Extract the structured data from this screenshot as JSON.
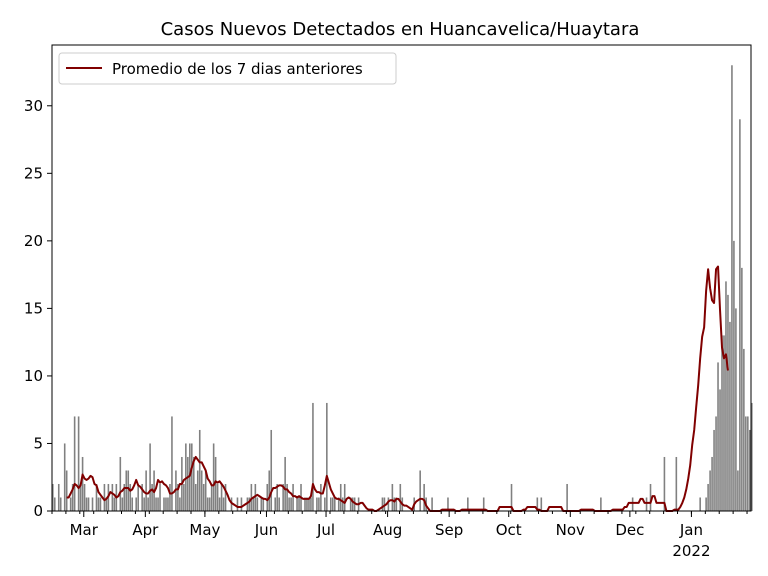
{
  "chart_data": {
    "type": "bar",
    "title": "Casos Nuevos Detectados en Huancavelica/Huaytara",
    "xlabel": "",
    "ylabel": "",
    "ylim": [
      0,
      34.5
    ],
    "y_ticks": [
      0,
      5,
      10,
      15,
      20,
      25,
      30
    ],
    "x_range": [
      "2021-02-13",
      "2022-01-31"
    ],
    "x_ticks": [
      {
        "date": "2021-03-01",
        "label": "Mar"
      },
      {
        "date": "2021-04-01",
        "label": "Apr"
      },
      {
        "date": "2021-05-01",
        "label": "May"
      },
      {
        "date": "2021-06-01",
        "label": "Jun"
      },
      {
        "date": "2021-07-01",
        "label": "Jul"
      },
      {
        "date": "2021-08-01",
        "label": "Aug"
      },
      {
        "date": "2021-09-01",
        "label": "Sep"
      },
      {
        "date": "2021-10-01",
        "label": "Oct"
      },
      {
        "date": "2021-11-01",
        "label": "Nov"
      },
      {
        "date": "2021-12-01",
        "label": "Dec"
      },
      {
        "date": "2022-01-01",
        "label": "Jan",
        "sublabel": "2022"
      }
    ],
    "legend": {
      "position": "top-left",
      "entries": [
        "Promedio de los 7 dias anteriores"
      ]
    },
    "bar_color": "#808080",
    "line_color": "#800000",
    "series": [
      {
        "type": "bar",
        "start_date": "2021-02-13",
        "values": [
          2,
          1,
          0,
          2,
          1,
          0,
          5,
          3,
          0,
          1,
          2,
          7,
          0,
          7,
          2,
          4,
          2,
          1,
          1,
          0,
          1,
          0,
          2,
          1,
          1,
          0,
          2,
          1,
          2,
          0,
          2,
          1,
          2,
          0,
          4,
          1,
          2,
          3,
          3,
          2,
          1,
          0,
          1,
          2,
          0,
          2,
          1,
          3,
          1,
          5,
          2,
          3,
          1,
          1,
          2,
          0,
          1,
          1,
          1,
          2,
          7,
          0,
          3,
          2,
          1,
          4,
          2,
          5,
          4,
          5,
          5,
          4,
          2,
          3,
          6,
          3,
          2,
          3,
          1,
          1,
          2,
          5,
          4,
          2,
          1,
          2,
          1,
          2,
          0,
          0,
          1,
          0,
          0,
          1,
          0,
          1,
          0,
          0,
          1,
          1,
          2,
          1,
          2,
          1,
          0,
          1,
          1,
          0,
          2,
          3,
          6,
          0,
          1,
          2,
          1,
          0,
          2,
          4,
          2,
          1,
          1,
          2,
          0,
          1,
          1,
          2,
          0,
          1,
          1,
          1,
          1,
          8,
          0,
          1,
          1,
          2,
          0,
          1,
          8,
          0,
          1,
          1,
          1,
          0,
          1,
          2,
          1,
          2,
          0,
          0,
          1,
          1,
          1,
          0,
          1,
          0,
          0,
          0,
          0,
          0,
          0,
          0,
          0,
          0,
          0,
          0,
          1,
          1,
          0,
          1,
          0,
          2,
          1,
          1,
          0,
          2,
          1,
          0,
          0,
          0,
          0,
          0,
          1,
          0,
          0,
          3,
          0,
          2,
          1,
          0,
          0,
          1,
          0,
          0,
          0,
          0,
          0,
          0,
          0,
          1,
          0,
          0,
          0,
          0,
          0,
          0,
          0,
          0,
          0,
          1,
          0,
          0,
          0,
          0,
          0,
          0,
          0,
          1,
          0,
          0,
          0,
          0,
          0,
          0,
          0,
          0,
          0,
          0,
          0,
          0,
          0,
          2,
          0,
          0,
          0,
          0,
          0,
          0,
          0,
          0,
          0,
          0,
          0,
          0,
          1,
          0,
          1,
          0,
          0,
          0,
          0,
          0,
          0,
          0,
          0,
          0,
          0,
          0,
          0,
          2,
          0,
          0,
          0,
          0,
          0,
          0,
          0,
          0,
          0,
          0,
          0,
          0,
          0,
          0,
          0,
          0,
          1,
          0,
          0,
          0,
          0,
          0,
          0,
          0,
          0,
          0,
          0,
          0,
          0,
          0,
          0,
          0,
          1,
          0,
          0,
          0,
          0,
          0,
          0,
          1,
          0,
          2,
          0,
          0,
          0,
          0,
          0,
          0,
          4,
          0,
          0,
          0,
          0,
          0,
          4,
          0,
          0,
          0,
          0,
          0,
          0,
          0,
          0,
          0,
          0,
          0,
          1,
          0,
          0,
          1,
          2,
          3,
          4,
          6,
          7,
          11,
          9,
          13,
          13,
          17,
          16,
          14,
          33,
          20,
          15,
          3,
          29,
          18,
          12,
          7,
          7,
          6,
          8
        ]
      },
      {
        "type": "line",
        "name": "Promedio de los 7 dias anteriores",
        "start_date": "2021-02-20",
        "values": [
          1.0,
          1.0,
          1.3,
          1.6,
          2.0,
          1.9,
          1.7,
          1.9,
          2.7,
          2.4,
          2.3,
          2.4,
          2.6,
          2.5,
          2.0,
          1.9,
          1.4,
          1.2,
          1.0,
          0.8,
          0.9,
          1.1,
          1.4,
          1.3,
          1.2,
          1.0,
          1.1,
          1.4,
          1.5,
          1.7,
          1.7,
          1.7,
          1.5,
          1.6,
          1.9,
          2.3,
          1.9,
          1.8,
          1.6,
          1.4,
          1.3,
          1.3,
          1.5,
          1.6,
          1.4,
          1.7,
          2.3,
          2.1,
          2.2,
          2.0,
          1.9,
          1.7,
          1.3,
          1.3,
          1.4,
          1.6,
          1.6,
          2.0,
          2.0,
          2.3,
          2.4,
          2.5,
          2.6,
          3.2,
          3.7,
          4.0,
          3.8,
          3.6,
          3.6,
          3.3,
          3.0,
          2.4,
          2.2,
          1.9,
          1.9,
          2.2,
          2.1,
          2.2,
          2.0,
          1.8,
          1.5,
          1.2,
          0.8,
          0.6,
          0.5,
          0.4,
          0.3,
          0.3,
          0.3,
          0.4,
          0.5,
          0.6,
          0.7,
          0.9,
          1.0,
          1.1,
          1.2,
          1.1,
          1.0,
          0.9,
          0.9,
          0.8,
          1.0,
          1.4,
          1.7,
          1.7,
          1.8,
          1.9,
          1.9,
          1.8,
          1.6,
          1.6,
          1.4,
          1.3,
          1.1,
          1.1,
          1.0,
          1.1,
          1.0,
          0.9,
          0.9,
          0.9,
          0.9,
          1.1,
          2.0,
          1.6,
          1.4,
          1.4,
          1.3,
          1.3,
          1.9,
          2.6,
          2.1,
          1.6,
          1.3,
          1.0,
          0.9,
          0.9,
          0.8,
          0.7,
          0.6,
          0.9,
          1.0,
          0.9,
          0.7,
          0.6,
          0.5,
          0.5,
          0.6,
          0.6,
          0.4,
          0.2,
          0.1,
          0.1,
          0.1,
          0.0,
          0.0,
          0.1,
          0.2,
          0.3,
          0.4,
          0.5,
          0.7,
          0.8,
          0.8,
          0.7,
          0.9,
          0.9,
          0.7,
          0.5,
          0.4,
          0.4,
          0.3,
          0.2,
          0.1,
          0.5,
          0.7,
          0.8,
          0.9,
          0.9,
          0.8,
          0.4,
          0.2,
          0.0,
          0.0,
          0.0,
          0.0,
          0.0,
          0.0,
          0.1,
          0.1,
          0.1,
          0.1,
          0.1,
          0.1,
          0.1,
          0.0,
          0.0,
          0.0,
          0.1,
          0.1,
          0.1,
          0.1,
          0.1,
          0.1,
          0.1,
          0.1,
          0.1,
          0.1,
          0.1,
          0.1,
          0.1,
          0.0,
          0.0,
          0.0,
          0.0,
          0.0,
          0.0,
          0.3,
          0.3,
          0.3,
          0.3,
          0.3,
          0.3,
          0.3,
          0.0,
          0.0,
          0.0,
          0.0,
          0.0,
          0.1,
          0.1,
          0.3,
          0.3,
          0.3,
          0.3,
          0.3,
          0.1,
          0.1,
          0.0,
          0.0,
          0.0,
          0.0,
          0.3,
          0.3,
          0.3,
          0.3,
          0.3,
          0.3,
          0.3,
          0.0,
          0.0,
          0.0,
          0.0,
          0.0,
          0.0,
          0.0,
          0.0,
          0.0,
          0.1,
          0.1,
          0.1,
          0.1,
          0.1,
          0.1,
          0.1,
          0.0,
          0.0,
          0.0,
          0.0,
          0.0,
          0.0,
          0.0,
          0.0,
          0.0,
          0.1,
          0.1,
          0.1,
          0.1,
          0.1,
          0.1,
          0.3,
          0.3,
          0.6,
          0.6,
          0.6,
          0.6,
          0.6,
          0.6,
          0.9,
          0.9,
          0.6,
          0.6,
          0.6,
          0.6,
          1.1,
          1.1,
          0.6,
          0.6,
          0.6,
          0.6,
          0.6,
          0.0,
          0.0,
          0.0,
          0.0,
          0.1,
          0.1,
          0.1,
          0.3,
          0.6,
          1.0,
          1.6,
          2.4,
          3.4,
          4.9,
          6.0,
          7.7,
          9.3,
          11.3,
          12.9,
          13.6,
          16.3,
          17.9,
          16.5,
          15.6,
          15.4,
          17.9,
          18.1,
          14.9,
          12.1,
          11.3,
          11.6,
          10.4
        ]
      }
    ]
  }
}
